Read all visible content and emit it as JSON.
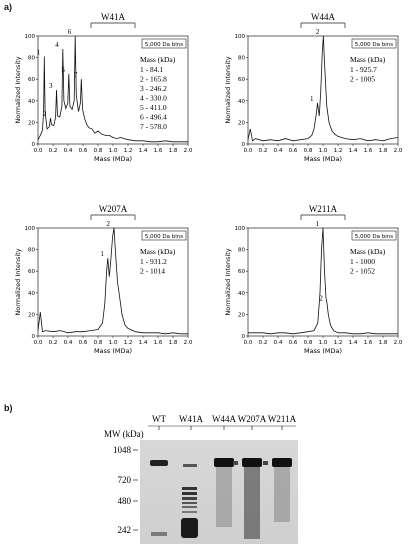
{
  "figure": {
    "panel_a_label": "a)",
    "panel_b_label": "b)"
  },
  "chart_data": [
    {
      "type": "line",
      "title": "W41A",
      "xlabel": "Mass (MDa)",
      "ylabel": "Normalized Intensity",
      "xlim": [
        0,
        2.0
      ],
      "ylim": [
        0,
        100
      ],
      "xticks": [
        "0.0",
        "0.2",
        "0.4",
        "0.6",
        "0.8",
        "1.0",
        "1.2",
        "1.4",
        "1.6",
        "1.8",
        "2.0"
      ],
      "yticks": [
        "0",
        "20",
        "40",
        "60",
        "80",
        "100"
      ],
      "bins_label": "5,000 Da bins",
      "mass_header": "Mass (kDa)",
      "peaks": [
        {
          "label": "1",
          "mass": "84.1",
          "x": 0.084,
          "y": 81
        },
        {
          "label": "2",
          "mass": "165.8",
          "x": 0.166,
          "y": 24
        },
        {
          "label": "3",
          "mass": "246.2",
          "x": 0.246,
          "y": 50
        },
        {
          "label": "4",
          "mass": "330.0",
          "x": 0.33,
          "y": 88
        },
        {
          "label": "5",
          "mass": "411.0",
          "x": 0.411,
          "y": 65
        },
        {
          "label": "6",
          "mass": "496.4",
          "x": 0.496,
          "y": 100
        },
        {
          "label": "7",
          "mass": "578.0",
          "x": 0.578,
          "y": 60
        }
      ],
      "series": [
        {
          "x": [
            0.0,
            0.03,
            0.06,
            0.075,
            0.084,
            0.095,
            0.12,
            0.15,
            0.166,
            0.18,
            0.21,
            0.235,
            0.246,
            0.26,
            0.29,
            0.318,
            0.33,
            0.345,
            0.37,
            0.398,
            0.411,
            0.425,
            0.455,
            0.482,
            0.496,
            0.51,
            0.54,
            0.565,
            0.578,
            0.595,
            0.62,
            0.65,
            0.68,
            0.72,
            0.76,
            0.8,
            0.85,
            0.9,
            0.95,
            1.0,
            1.05,
            1.1,
            1.2,
            1.3,
            1.4,
            1.5,
            1.6,
            1.7,
            1.8,
            1.9,
            2.0
          ],
          "y": [
            4,
            8,
            13,
            30,
            81,
            30,
            14,
            16,
            24,
            18,
            17,
            25,
            50,
            26,
            25,
            35,
            88,
            40,
            33,
            38,
            65,
            35,
            32,
            40,
            100,
            45,
            30,
            38,
            60,
            32,
            24,
            18,
            15,
            14,
            10,
            12,
            9,
            8,
            8,
            6,
            5,
            6,
            4,
            3,
            3,
            2,
            2,
            3,
            2,
            2,
            2
          ]
        }
      ]
    },
    {
      "type": "line",
      "title": "W44A",
      "xlabel": "Mass (MDa)",
      "ylabel": "Normalized Intensity",
      "xlim": [
        0,
        2.0
      ],
      "ylim": [
        0,
        100
      ],
      "xticks": [
        "0.0",
        "0.2",
        "0.4",
        "0.6",
        "0.8",
        "1.0",
        "1.2",
        "1.4",
        "1.6",
        "1.8",
        "2.0"
      ],
      "yticks": [
        "0",
        "20",
        "40",
        "60",
        "80",
        "100"
      ],
      "bins_label": "5,000 Da bins",
      "mass_header": "Mass (kDa)",
      "peaks": [
        {
          "label": "1",
          "mass": "925.7",
          "x": 0.926,
          "y": 38
        },
        {
          "label": "2",
          "mass": "1005",
          "x": 1.005,
          "y": 100
        }
      ],
      "series": [
        {
          "x": [
            0.0,
            0.03,
            0.06,
            0.1,
            0.2,
            0.3,
            0.4,
            0.5,
            0.6,
            0.7,
            0.8,
            0.85,
            0.88,
            0.91,
            0.926,
            0.95,
            0.97,
            0.99,
            1.005,
            1.02,
            1.05,
            1.08,
            1.12,
            1.16,
            1.2,
            1.3,
            1.4,
            1.5,
            1.6,
            1.7,
            1.8,
            1.9,
            2.0
          ],
          "y": [
            4,
            14,
            3,
            5,
            3,
            4,
            3,
            5,
            3,
            4,
            5,
            8,
            14,
            28,
            38,
            26,
            50,
            85,
            100,
            75,
            35,
            20,
            12,
            9,
            7,
            5,
            4,
            5,
            3,
            4,
            3,
            5,
            6
          ]
        }
      ]
    },
    {
      "type": "line",
      "title": "W207A",
      "xlabel": "Mass (MDa)",
      "ylabel": "Normalized Intensity",
      "xlim": [
        0,
        2.0
      ],
      "ylim": [
        0,
        100
      ],
      "xticks": [
        "0.0",
        "0.2",
        "0.4",
        "0.6",
        "0.8",
        "1.0",
        "1.2",
        "1.4",
        "1.6",
        "1.8",
        "2.0"
      ],
      "yticks": [
        "0",
        "20",
        "40",
        "60",
        "80",
        "100"
      ],
      "bins_label": "5,000 Da bins",
      "mass_header": "Mass (kDa)",
      "peaks": [
        {
          "label": "1",
          "mass": "931.2",
          "x": 0.931,
          "y": 72
        },
        {
          "label": "2",
          "mass": "1014",
          "x": 1.014,
          "y": 100
        }
      ],
      "series": [
        {
          "x": [
            0.0,
            0.03,
            0.06,
            0.1,
            0.2,
            0.3,
            0.4,
            0.5,
            0.6,
            0.7,
            0.8,
            0.86,
            0.89,
            0.915,
            0.931,
            0.95,
            0.97,
            0.995,
            1.014,
            1.03,
            1.06,
            1.09,
            1.12,
            1.16,
            1.2,
            1.3,
            1.4,
            1.5,
            1.6,
            1.7,
            1.8,
            1.9,
            2.0
          ],
          "y": [
            5,
            22,
            4,
            5,
            4,
            5,
            3,
            4,
            4,
            5,
            6,
            12,
            30,
            60,
            72,
            55,
            70,
            92,
            100,
            80,
            50,
            35,
            20,
            10,
            7,
            4,
            3,
            3,
            3,
            2,
            3,
            2,
            2
          ]
        }
      ]
    },
    {
      "type": "line",
      "title": "W211A",
      "xlabel": "Mass (MDa)",
      "ylabel": "Normalized Intensity",
      "xlim": [
        0,
        2.0
      ],
      "ylim": [
        0,
        100
      ],
      "xticks": [
        "0.0",
        "0.2",
        "0.4",
        "0.6",
        "0.8",
        "1.0",
        "1.2",
        "1.4",
        "1.6",
        "1.8",
        "2.0"
      ],
      "yticks": [
        "0",
        "20",
        "40",
        "60",
        "80",
        "100"
      ],
      "bins_label": "5,000 Da bins",
      "mass_header": "Mass (kDa)",
      "peaks": [
        {
          "label": "1",
          "mass": "1000",
          "x": 1.0,
          "y": 100
        },
        {
          "label": "2",
          "mass": "1052",
          "x": 1.052,
          "y": 31
        }
      ],
      "series": [
        {
          "x": [
            0.0,
            0.1,
            0.2,
            0.3,
            0.4,
            0.5,
            0.6,
            0.7,
            0.8,
            0.88,
            0.93,
            0.96,
            0.98,
            1.0,
            1.02,
            1.04,
            1.052,
            1.07,
            1.1,
            1.14,
            1.2,
            1.3,
            1.4,
            1.5,
            1.6,
            1.7,
            1.8,
            1.9,
            2.0
          ],
          "y": [
            3,
            3,
            3,
            2,
            3,
            3,
            2,
            3,
            4,
            5,
            12,
            40,
            80,
            100,
            60,
            35,
            31,
            20,
            10,
            5,
            3,
            3,
            2,
            2,
            3,
            2,
            2,
            2,
            2
          ]
        }
      ]
    }
  ],
  "gel": {
    "mw_label": "MW (kDa)",
    "lanes": [
      "WT",
      "W41A",
      "W44A",
      "W207A",
      "W211A"
    ],
    "markers": [
      "1048",
      "720",
      "480",
      "242"
    ]
  }
}
